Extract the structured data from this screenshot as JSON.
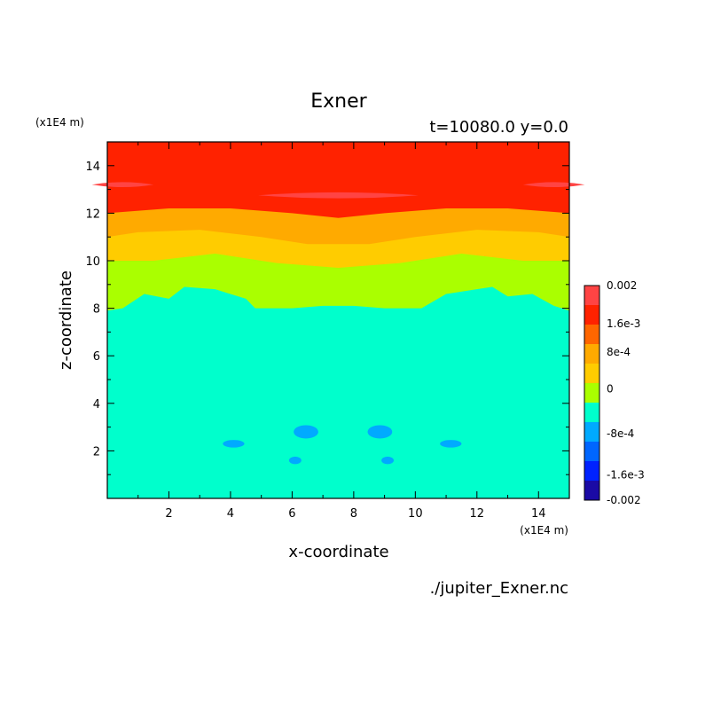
{
  "chart_data": {
    "type": "contour",
    "title": "Exner",
    "subtitle": "t=10080.0 y=0.0",
    "xlabel": "x-coordinate",
    "ylabel": "z-coordinate",
    "x_unit": "(x1E4 m)",
    "y_unit": "(x1E4 m)",
    "source_file": "./jupiter_Exner.nc",
    "xlim": [
      0,
      15
    ],
    "ylim": [
      0,
      15
    ],
    "x_ticks": [
      2,
      4,
      6,
      8,
      10,
      12,
      14
    ],
    "y_ticks": [
      2,
      4,
      6,
      8,
      10,
      12,
      14
    ],
    "colorbar": {
      "labels": [
        "0.002",
        "1.6e-3",
        "8e-4",
        "0",
        "-8e-4",
        "-1.6e-3",
        "-0.002"
      ],
      "levels": [
        {
          "from": -0.002,
          "to": -0.0016,
          "color": "#1a0aa5"
        },
        {
          "from": -0.0016,
          "to": -0.0012,
          "color": "#0022ff"
        },
        {
          "from": -0.0012,
          "to": -0.0008,
          "color": "#0066ff"
        },
        {
          "from": -0.0008,
          "to": -0.0004,
          "color": "#00aaff"
        },
        {
          "from": -0.0004,
          "to": 0.0,
          "color": "#00ffcc"
        },
        {
          "from": 0.0,
          "to": 0.0004,
          "color": "#aaff00"
        },
        {
          "from": 0.0004,
          "to": 0.0008,
          "color": "#ffcc00"
        },
        {
          "from": 0.0008,
          "to": 0.0012,
          "color": "#ffaa00"
        },
        {
          "from": 0.0012,
          "to": 0.0016,
          "color": "#ff6600"
        },
        {
          "from": 0.0016,
          "to": 0.002,
          "color": "#ff2200"
        },
        {
          "from": 0.002,
          "to": 0.0024,
          "color": "#ff4444"
        }
      ]
    },
    "contour_boundaries": {
      "top_band_lower": [
        [
          0,
          12.0
        ],
        [
          2,
          12.2
        ],
        [
          4,
          12.2
        ],
        [
          6,
          12.0
        ],
        [
          7.5,
          11.8
        ],
        [
          9,
          12.0
        ],
        [
          11,
          12.2
        ],
        [
          13,
          12.2
        ],
        [
          15,
          12.0
        ]
      ],
      "orange_lower": [
        [
          0,
          11.0
        ],
        [
          1,
          11.2
        ],
        [
          3,
          11.3
        ],
        [
          5,
          11.0
        ],
        [
          6.5,
          10.7
        ],
        [
          7.5,
          10.7
        ],
        [
          8.5,
          10.7
        ],
        [
          10,
          11.0
        ],
        [
          12,
          11.3
        ],
        [
          14,
          11.2
        ],
        [
          15,
          11.0
        ]
      ],
      "yellow_lower": [
        [
          0,
          10.0
        ],
        [
          1.5,
          10.0
        ],
        [
          3.5,
          10.3
        ],
        [
          5.5,
          9.9
        ],
        [
          7.5,
          9.7
        ],
        [
          9.5,
          9.9
        ],
        [
          11.5,
          10.3
        ],
        [
          13.5,
          10.0
        ],
        [
          15,
          10.0
        ]
      ],
      "green_lower": [
        [
          0,
          7.9
        ],
        [
          0.5,
          8.0
        ],
        [
          1.2,
          8.6
        ],
        [
          2.0,
          8.4
        ],
        [
          2.5,
          8.9
        ],
        [
          3.5,
          8.8
        ],
        [
          4.5,
          8.4
        ],
        [
          4.8,
          8.0
        ],
        [
          6,
          8.0
        ],
        [
          7,
          8.1
        ],
        [
          7.5,
          8.1
        ],
        [
          8,
          8.1
        ],
        [
          9,
          8.0
        ],
        [
          10.2,
          8.0
        ],
        [
          11,
          8.6
        ],
        [
          12,
          8.8
        ],
        [
          12.5,
          8.9
        ],
        [
          13,
          8.5
        ],
        [
          13.8,
          8.6
        ],
        [
          14.5,
          8.1
        ],
        [
          15,
          7.9
        ]
      ]
    },
    "high_patches": [
      {
        "cx": 7.5,
        "cz": 12.75,
        "rx": 2.6,
        "rz": 0.18
      },
      {
        "cx": 0.5,
        "cz": 13.2,
        "rx": 1.0,
        "rz": 0.15
      },
      {
        "cx": 14.5,
        "cz": 13.2,
        "rx": 1.0,
        "rz": 0.15
      }
    ],
    "low_patches": [
      {
        "cx": 4.1,
        "cz": 2.3,
        "rx": 0.35,
        "rz": 0.16
      },
      {
        "cx": 6.45,
        "cz": 2.8,
        "rx": 0.4,
        "rz": 0.28
      },
      {
        "cx": 8.85,
        "cz": 2.8,
        "rx": 0.4,
        "rz": 0.28
      },
      {
        "cx": 11.15,
        "cz": 2.3,
        "rx": 0.35,
        "rz": 0.16
      },
      {
        "cx": 6.1,
        "cz": 1.6,
        "rx": 0.2,
        "rz": 0.16
      },
      {
        "cx": 9.1,
        "cz": 1.6,
        "rx": 0.2,
        "rz": 0.16
      }
    ]
  }
}
